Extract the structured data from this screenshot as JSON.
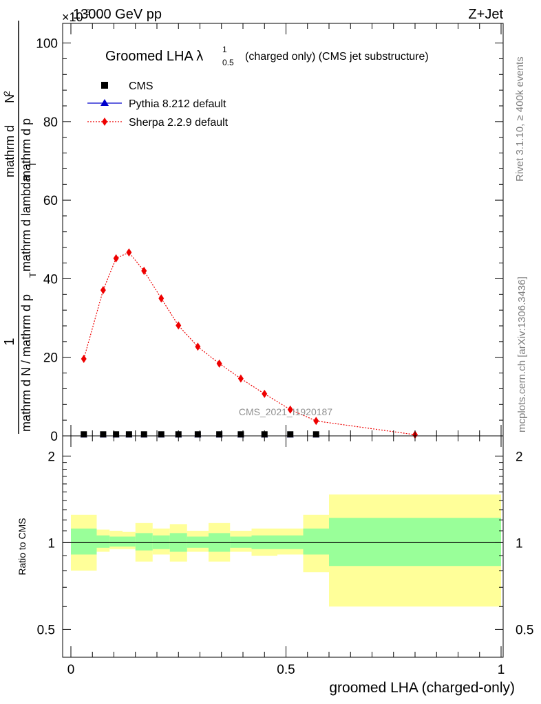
{
  "header": {
    "energy": "13000 GeV pp",
    "process": "Z+Jet",
    "exponent": "×10",
    "exponent_power": "-3"
  },
  "side_labels": {
    "rivet": "Rivet 3.1.10, ≥ 400k events",
    "mcplots": "mcplots.cern.ch [arXiv:1306.3436]"
  },
  "watermark": "CMS_2021_I1920187",
  "chart_data": [
    {
      "type": "line",
      "title": "Groomed LHA λ",
      "title_sup": "1",
      "title_sub": "0.5",
      "subtitle": "(charged only) (CMS jet substructure)",
      "ylabel_numerator": "1",
      "ylabel_denominator": "mathrm d N / mathrm d p",
      "ylabel_denominator_rest": "mathrm d p",
      "ylabel_sub_T": "T",
      "ylabel_lambda": "mathrm d lambda",
      "ylabel_dN": "mathrm d",
      "ylabel_N": "N",
      "ylabel_sup": "2",
      "ylabel_tail": "mathrm d p",
      "xlim": [
        0,
        1
      ],
      "ylim": [
        0,
        105
      ],
      "yticks": [
        "0",
        "20",
        "40",
        "60",
        "80",
        "100"
      ],
      "legend": [
        {
          "label": "CMS",
          "color": "#000000",
          "marker": "square"
        },
        {
          "label": "Pythia 8.212 default",
          "color": "#0000cc",
          "marker": "triangle"
        },
        {
          "label": "Sherpa 2.2.9 default",
          "color": "#ee0000",
          "marker": "diamond"
        }
      ],
      "series": [
        {
          "name": "CMS",
          "color": "#000000",
          "x": [
            0.03,
            0.075,
            0.105,
            0.135,
            0.17,
            0.21,
            0.25,
            0.295,
            0.345,
            0.395,
            0.45,
            0.51,
            0.57
          ],
          "values": [
            0.3,
            0.3,
            0.3,
            0.3,
            0.3,
            0.3,
            0.3,
            0.3,
            0.3,
            0.3,
            0.3,
            0.3,
            0.3
          ]
        },
        {
          "name": "Pythia 8.212 default",
          "color": "#0000cc",
          "x": [
            0.03,
            0.075,
            0.105,
            0.135,
            0.17,
            0.21,
            0.25,
            0.295,
            0.345,
            0.395,
            0.45,
            0.51,
            0.57
          ],
          "values": [
            0.3,
            0.3,
            0.3,
            0.3,
            0.3,
            0.3,
            0.3,
            0.3,
            0.3,
            0.3,
            0.3,
            0.3,
            0.3
          ]
        },
        {
          "name": "Sherpa 2.2.9 default",
          "color": "#ee0000",
          "x": [
            0.03,
            0.075,
            0.105,
            0.135,
            0.17,
            0.21,
            0.25,
            0.295,
            0.345,
            0.395,
            0.45,
            0.51,
            0.57,
            0.8
          ],
          "values": [
            19.6,
            37.1,
            45.2,
            46.7,
            42.0,
            35.0,
            28.1,
            22.7,
            18.4,
            14.6,
            10.7,
            6.7,
            3.8,
            0.3
          ]
        }
      ]
    },
    {
      "type": "area",
      "ylabel": "Ratio to CMS",
      "xlabel": "groomed LHA (charged-only)",
      "xlim": [
        0,
        1
      ],
      "ylim": [
        0.4,
        2.35
      ],
      "yscale": "log",
      "xticks": [
        "0",
        "0.5",
        "1"
      ],
      "yticks": [
        "0.5",
        "1",
        "2"
      ],
      "reference": 1,
      "bins": [
        {
          "x0": 0.0,
          "x1": 0.06,
          "inner": [
            0.91,
            1.12
          ],
          "outer": [
            0.8,
            1.25
          ]
        },
        {
          "x0": 0.06,
          "x1": 0.09,
          "inner": [
            0.96,
            1.06
          ],
          "outer": [
            0.93,
            1.11
          ]
        },
        {
          "x0": 0.09,
          "x1": 0.12,
          "inner": [
            0.97,
            1.05
          ],
          "outer": [
            0.95,
            1.1
          ]
        },
        {
          "x0": 0.12,
          "x1": 0.15,
          "inner": [
            0.97,
            1.05
          ],
          "outer": [
            0.95,
            1.09
          ]
        },
        {
          "x0": 0.15,
          "x1": 0.19,
          "inner": [
            0.94,
            1.08
          ],
          "outer": [
            0.86,
            1.17
          ]
        },
        {
          "x0": 0.19,
          "x1": 0.23,
          "inner": [
            0.95,
            1.06
          ],
          "outer": [
            0.91,
            1.12
          ]
        },
        {
          "x0": 0.23,
          "x1": 0.27,
          "inner": [
            0.93,
            1.08
          ],
          "outer": [
            0.86,
            1.16
          ]
        },
        {
          "x0": 0.27,
          "x1": 0.32,
          "inner": [
            0.96,
            1.05
          ],
          "outer": [
            0.93,
            1.1
          ]
        },
        {
          "x0": 0.32,
          "x1": 0.37,
          "inner": [
            0.93,
            1.08
          ],
          "outer": [
            0.86,
            1.17
          ]
        },
        {
          "x0": 0.37,
          "x1": 0.42,
          "inner": [
            0.96,
            1.05
          ],
          "outer": [
            0.93,
            1.1
          ]
        },
        {
          "x0": 0.42,
          "x1": 0.48,
          "inner": [
            0.95,
            1.06
          ],
          "outer": [
            0.9,
            1.12
          ]
        },
        {
          "x0": 0.48,
          "x1": 0.54,
          "inner": [
            0.95,
            1.06
          ],
          "outer": [
            0.91,
            1.12
          ]
        },
        {
          "x0": 0.54,
          "x1": 0.6,
          "inner": [
            0.91,
            1.12
          ],
          "outer": [
            0.79,
            1.25
          ]
        },
        {
          "x0": 0.6,
          "x1": 1.0,
          "inner": [
            0.83,
            1.22
          ],
          "outer": [
            0.6,
            1.47
          ]
        }
      ]
    }
  ]
}
